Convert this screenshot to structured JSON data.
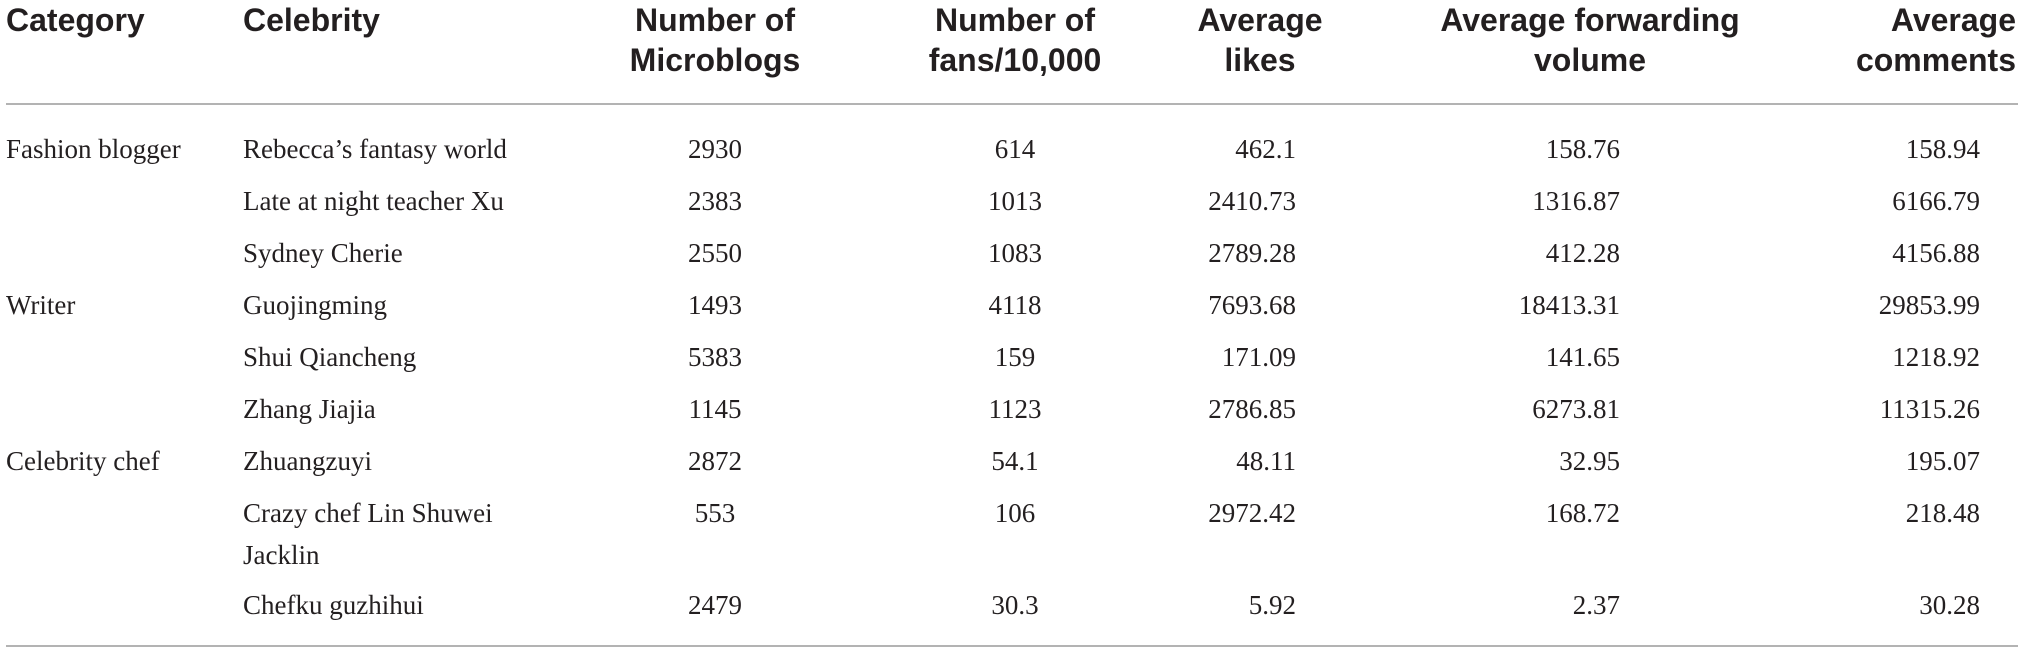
{
  "table": {
    "columns": [
      {
        "lines": [
          "Category"
        ]
      },
      {
        "lines": [
          "Celebrity"
        ]
      },
      {
        "lines": [
          "Number of",
          "Microblogs"
        ]
      },
      {
        "lines": [
          "Number of",
          "fans/10,000"
        ]
      },
      {
        "lines": [
          "Average",
          "likes"
        ]
      },
      {
        "lines": [
          "Average forwarding",
          "volume"
        ]
      },
      {
        "lines": [
          "Average",
          "comments"
        ]
      }
    ],
    "rows": [
      {
        "category": "Fashion blogger",
        "celebrity": "Rebecca’s fantasy world",
        "microblogs": "2930",
        "fans": "614",
        "likes": "462.1",
        "forwarding": "158.76",
        "comments": "158.94"
      },
      {
        "category": "",
        "celebrity": "Late at night teacher Xu",
        "microblogs": "2383",
        "fans": "1013",
        "likes": "2410.73",
        "forwarding": "1316.87",
        "comments": "6166.79"
      },
      {
        "category": "",
        "celebrity": "Sydney Cherie",
        "microblogs": "2550",
        "fans": "1083",
        "likes": "2789.28",
        "forwarding": "412.28",
        "comments": "4156.88"
      },
      {
        "category": "Writer",
        "celebrity": "Guojingming",
        "microblogs": "1493",
        "fans": "4118",
        "likes": "7693.68",
        "forwarding": "18413.31",
        "comments": "29853.99"
      },
      {
        "category": "",
        "celebrity": "Shui Qiancheng",
        "microblogs": "5383",
        "fans": "159",
        "likes": "171.09",
        "forwarding": "141.65",
        "comments": "1218.92"
      },
      {
        "category": "",
        "celebrity": "Zhang Jiajia",
        "microblogs": "1145",
        "fans": "1123",
        "likes": "2786.85",
        "forwarding": "6273.81",
        "comments": "11315.26"
      },
      {
        "category": "Celebrity chef",
        "celebrity": "Zhuangzuyi",
        "microblogs": "2872",
        "fans": "54.1",
        "likes": "48.11",
        "forwarding": "32.95",
        "comments": "195.07"
      },
      {
        "category": "",
        "celebrity": "Crazy chef Lin Shuwei Jacklin",
        "microblogs": "553",
        "fans": "106",
        "likes": "2972.42",
        "forwarding": "168.72",
        "comments": "218.48"
      },
      {
        "category": "",
        "celebrity": "Chefku guzhihui",
        "microblogs": "2479",
        "fans": "30.3",
        "likes": "5.92",
        "forwarding": "2.37",
        "comments": "30.28"
      }
    ]
  }
}
